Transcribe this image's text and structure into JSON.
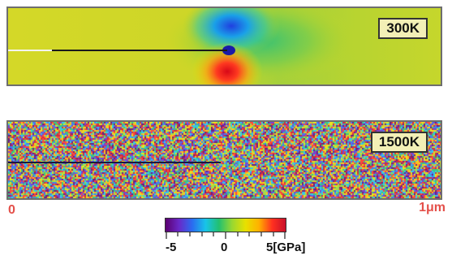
{
  "panels": [
    {
      "label": "300K"
    },
    {
      "label": "1500K"
    }
  ],
  "axis": {
    "start_label": "0",
    "end_label": "1μm"
  },
  "colorbar": {
    "min_label": "-5",
    "mid_label": "0",
    "max_label": "5[GPa]",
    "colors": [
      "#5b0070",
      "#6a28c8",
      "#2a6cf0",
      "#18c4e8",
      "#22c070",
      "#9ad830",
      "#e8e000",
      "#ffb000",
      "#ff3020",
      "#c8102a"
    ]
  }
}
